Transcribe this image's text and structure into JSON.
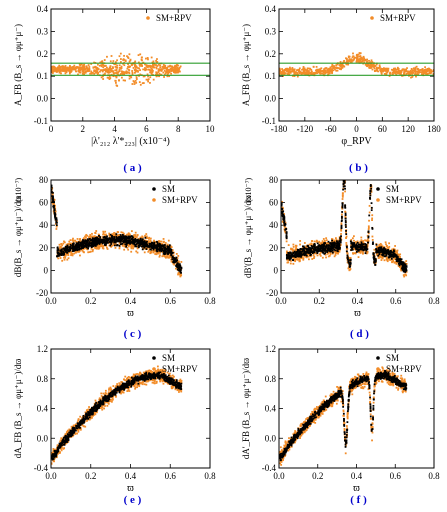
{
  "chart_data": [
    {
      "id": "a",
      "type": "scatter",
      "tag": "( a )",
      "ylabel": "A_FB (B_s → φμ⁺μ⁻)",
      "xlabel": "|λ'₂₁₂ λ'*₂₂₃| (x10⁻⁴)",
      "yscale_note": "",
      "xlim": [
        0,
        10
      ],
      "ylim": [
        -0.1,
        0.4
      ],
      "xticks": [
        "0",
        "2",
        "4",
        "6",
        "8",
        "10"
      ],
      "yticks": [
        "-0.1",
        "0.0",
        "0.1",
        "0.2",
        "0.3",
        "0.4"
      ],
      "xtick_values": [
        0,
        2,
        4,
        6,
        8,
        10
      ],
      "ytick_values": [
        -0.1,
        0,
        0.1,
        0.2,
        0.3,
        0.4
      ],
      "legend": [
        {
          "name": "SM+RPV",
          "color": "#f28c28"
        }
      ],
      "hlines": [
        0.158,
        0.104
      ],
      "hline_color": "#2e9e2e",
      "series": [
        {
          "name": "SM+RPV",
          "color": "#f28c28",
          "kind": "cloud-a"
        }
      ]
    },
    {
      "id": "b",
      "type": "scatter",
      "tag": "( b )",
      "ylabel": "A_FB (B_s → φμ⁺μ⁻)",
      "xlabel": "φ_RPV",
      "yscale_note": "",
      "xlim": [
        -180,
        180
      ],
      "ylim": [
        -0.1,
        0.4
      ],
      "xticks": [
        "-180",
        "-120",
        "-60",
        "0",
        "60",
        "120",
        "180"
      ],
      "yticks": [
        "-0.1",
        "0.0",
        "0.1",
        "0.2",
        "0.3",
        "0.4"
      ],
      "xtick_values": [
        -180,
        -120,
        -60,
        0,
        60,
        120,
        180
      ],
      "ytick_values": [
        -0.1,
        0,
        0.1,
        0.2,
        0.3,
        0.4
      ],
      "legend": [
        {
          "name": "SM+RPV",
          "color": "#f28c28"
        }
      ],
      "hlines": [
        0.158,
        0.104
      ],
      "hline_color": "#2e9e2e",
      "series": [
        {
          "name": "SM+RPV",
          "color": "#f28c28",
          "kind": "cloud-b"
        }
      ]
    },
    {
      "id": "c",
      "type": "scatter",
      "tag": "( c )",
      "ylabel": "dB(B_s → φμ⁺μ⁻)/dϖ",
      "xlabel": "ϖ",
      "yscale_note": "(x10⁻⁷)",
      "xlim": [
        0,
        0.8
      ],
      "ylim": [
        -20,
        80
      ],
      "xticks": [
        "0.0",
        "0.2",
        "0.4",
        "0.6",
        "0.8"
      ],
      "yticks": [
        "-20",
        "0",
        "20",
        "40",
        "60",
        "80"
      ],
      "xtick_values": [
        0,
        0.2,
        0.4,
        0.6,
        0.8
      ],
      "ytick_values": [
        -20,
        0,
        20,
        40,
        60,
        80
      ],
      "legend": [
        {
          "name": "SM",
          "color": "#000000"
        },
        {
          "name": "SM+RPV",
          "color": "#f28c28"
        }
      ],
      "hlines": [],
      "hline_color": "#2e9e2e",
      "series": [
        {
          "name": "SM+RPV",
          "color": "#f28c28",
          "kind": "band-c-rpv"
        },
        {
          "name": "SM",
          "color": "#000000",
          "kind": "band-c-sm"
        }
      ]
    },
    {
      "id": "d",
      "type": "scatter",
      "tag": "( d )",
      "ylabel": "dB'(B_s → φμ⁺μ⁻)/dϖ",
      "xlabel": "ϖ",
      "yscale_note": "(x10⁻⁷)",
      "xlim": [
        0,
        0.8
      ],
      "ylim": [
        -20,
        80
      ],
      "xticks": [
        "0.0",
        "0.2",
        "0.4",
        "0.6",
        "0.8"
      ],
      "yticks": [
        "-20",
        "0",
        "20",
        "40",
        "60",
        "80"
      ],
      "xtick_values": [
        0,
        0.2,
        0.4,
        0.6,
        0.8
      ],
      "ytick_values": [
        -20,
        0,
        20,
        40,
        60,
        80
      ],
      "legend": [
        {
          "name": "SM",
          "color": "#000000"
        },
        {
          "name": "SM+RPV",
          "color": "#f28c28"
        }
      ],
      "hlines": [],
      "hline_color": "#2e9e2e",
      "series": [
        {
          "name": "SM+RPV",
          "color": "#f28c28",
          "kind": "band-d-rpv"
        },
        {
          "name": "SM",
          "color": "#000000",
          "kind": "band-d-sm"
        }
      ]
    },
    {
      "id": "e",
      "type": "scatter",
      "tag": "( e )",
      "ylabel": "dA_FB (B_s → φμ⁺μ⁻)/dϖ",
      "xlabel": "ϖ",
      "yscale_note": "",
      "xlim": [
        0,
        0.8
      ],
      "ylim": [
        -0.4,
        1.2
      ],
      "xticks": [
        "0.0",
        "0.2",
        "0.4",
        "0.6",
        "0.8"
      ],
      "yticks": [
        "-0.4",
        "0.0",
        "0.4",
        "0.8",
        "1.2"
      ],
      "xtick_values": [
        0,
        0.2,
        0.4,
        0.6,
        0.8
      ],
      "ytick_values": [
        -0.4,
        0,
        0.4,
        0.8,
        1.2
      ],
      "legend": [
        {
          "name": "SM",
          "color": "#000000"
        },
        {
          "name": "SM+RPV",
          "color": "#f28c28"
        }
      ],
      "hlines": [],
      "hline_color": "#2e9e2e",
      "series": [
        {
          "name": "SM+RPV",
          "color": "#f28c28",
          "kind": "band-e-rpv"
        },
        {
          "name": "SM",
          "color": "#000000",
          "kind": "band-e-sm"
        }
      ]
    },
    {
      "id": "f",
      "type": "scatter",
      "tag": "( f )",
      "ylabel": "dA'_FB (B_s → φμ⁺μ⁻)/dϖ",
      "xlabel": "ϖ",
      "yscale_note": "",
      "xlim": [
        0,
        0.8
      ],
      "ylim": [
        -0.4,
        1.2
      ],
      "xticks": [
        "0.0",
        "0.2",
        "0.4",
        "0.6",
        "0.8"
      ],
      "yticks": [
        "-0.4",
        "0.0",
        "0.4",
        "0.8",
        "1.2"
      ],
      "xtick_values": [
        0,
        0.2,
        0.4,
        0.6,
        0.8
      ],
      "ytick_values": [
        -0.4,
        0,
        0.4,
        0.8,
        1.2
      ],
      "legend": [
        {
          "name": "SM",
          "color": "#000000"
        },
        {
          "name": "SM+RPV",
          "color": "#f28c28"
        }
      ],
      "hlines": [],
      "hline_color": "#2e9e2e",
      "series": [
        {
          "name": "SM+RPV",
          "color": "#f28c28",
          "kind": "band-f-rpv"
        },
        {
          "name": "SM",
          "color": "#000000",
          "kind": "band-f-sm"
        }
      ]
    }
  ]
}
